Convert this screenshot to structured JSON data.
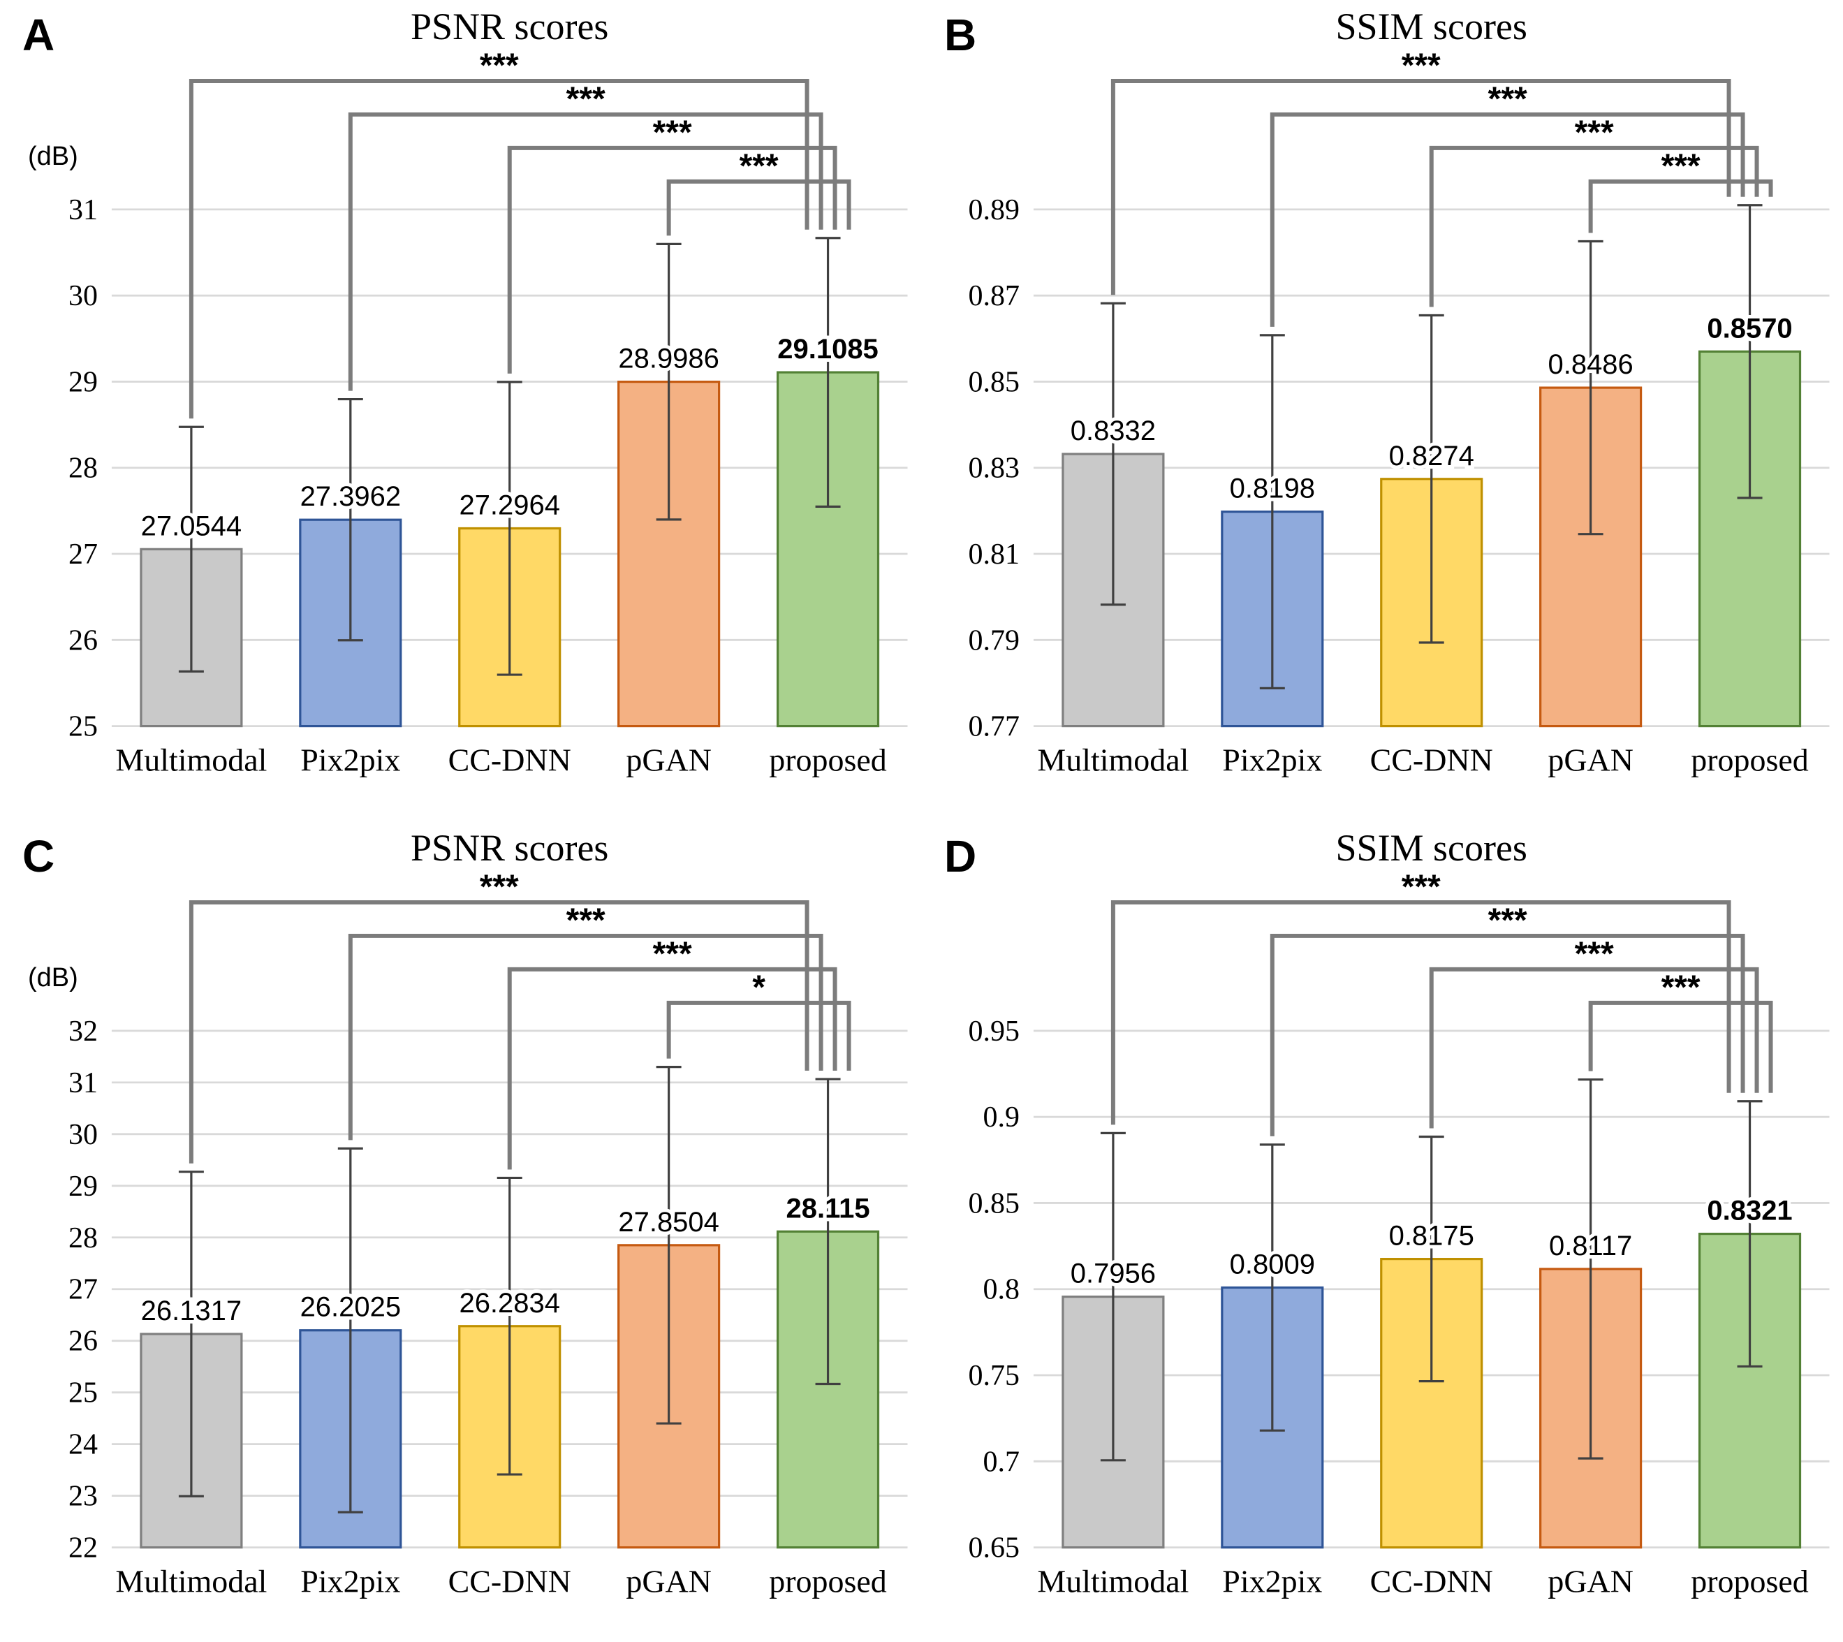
{
  "style": {
    "background": "#ffffff",
    "grid_color": "#d9d9d9",
    "error_bar_color": "#404040",
    "bracket_color": "#7c7c7c",
    "text_color": "#000000",
    "bar_colors": [
      {
        "name": "gray",
        "fill": "#c9c9c9",
        "stroke": "#7f7f7f"
      },
      {
        "name": "blue",
        "fill": "#8faadc",
        "stroke": "#2f5597"
      },
      {
        "name": "yellow",
        "fill": "#ffd966",
        "stroke": "#bf9000"
      },
      {
        "name": "orange",
        "fill": "#f4b183",
        "stroke": "#c55a11"
      },
      {
        "name": "green",
        "fill": "#a9d18e",
        "stroke": "#538135"
      }
    ]
  },
  "chart_data": [
    {
      "panel_label": "A",
      "type": "bar",
      "title": "PSNR scores",
      "unit_label": "(dB)",
      "categories": [
        "Multimodal",
        "Pix2pix",
        "CC-DNN",
        "pGAN",
        "proposed"
      ],
      "values": [
        27.0544,
        27.3962,
        27.2964,
        28.9986,
        29.1085
      ],
      "value_labels": [
        "27.0544",
        "27.3962",
        "27.2964",
        "28.9986",
        "29.1085"
      ],
      "bold_label_index": 4,
      "errors": [
        1.42,
        1.4,
        1.7,
        1.6,
        1.56
      ],
      "ylim": [
        25,
        31
      ],
      "yticks": [
        25,
        26,
        27,
        28,
        29,
        30,
        31
      ],
      "ytick_labels": [
        "25",
        "26",
        "27",
        "28",
        "29",
        "30",
        "31"
      ],
      "significance": [
        {
          "from": 0,
          "to": 4,
          "label": "***"
        },
        {
          "from": 1,
          "to": 4,
          "label": "***"
        },
        {
          "from": 2,
          "to": 4,
          "label": "***"
        },
        {
          "from": 3,
          "to": 4,
          "label": "***"
        }
      ]
    },
    {
      "panel_label": "B",
      "type": "bar",
      "title": "SSIM scores",
      "unit_label": "",
      "categories": [
        "Multimodal",
        "Pix2pix",
        "CC-DNN",
        "pGAN",
        "proposed"
      ],
      "values": [
        0.8332,
        0.8198,
        0.8274,
        0.8486,
        0.857
      ],
      "value_labels": [
        "0.8332",
        "0.8198",
        "0.8274",
        "0.8486",
        "0.8570"
      ],
      "bold_label_index": 4,
      "errors": [
        0.035,
        0.041,
        0.038,
        0.034,
        0.034
      ],
      "ylim": [
        0.77,
        0.89
      ],
      "yticks": [
        0.77,
        0.79,
        0.81,
        0.83,
        0.85,
        0.87,
        0.89
      ],
      "ytick_labels": [
        "0.77",
        "0.79",
        "0.81",
        "0.83",
        "0.85",
        "0.87",
        "0.89"
      ],
      "significance": [
        {
          "from": 0,
          "to": 4,
          "label": "***"
        },
        {
          "from": 1,
          "to": 4,
          "label": "***"
        },
        {
          "from": 2,
          "to": 4,
          "label": "***"
        },
        {
          "from": 3,
          "to": 4,
          "label": "***"
        }
      ]
    },
    {
      "panel_label": "C",
      "type": "bar",
      "title": "PSNR scores",
      "unit_label": "(dB)",
      "categories": [
        "Multimodal",
        "Pix2pix",
        "CC-DNN",
        "pGAN",
        "proposed"
      ],
      "values": [
        26.1317,
        26.2025,
        26.2834,
        27.8504,
        28.115
      ],
      "value_labels": [
        "26.1317",
        "26.2025",
        "26.2834",
        "27.8504",
        "28.115"
      ],
      "bold_label_index": 4,
      "errors": [
        3.14,
        3.52,
        2.87,
        3.45,
        2.95
      ],
      "ylim": [
        22,
        32
      ],
      "yticks": [
        22,
        23,
        24,
        25,
        26,
        27,
        28,
        29,
        30,
        31,
        32
      ],
      "ytick_labels": [
        "22",
        "23",
        "24",
        "25",
        "26",
        "27",
        "28",
        "29",
        "30",
        "31",
        "32"
      ],
      "significance": [
        {
          "from": 0,
          "to": 4,
          "label": "***"
        },
        {
          "from": 1,
          "to": 4,
          "label": "***"
        },
        {
          "from": 2,
          "to": 4,
          "label": "***"
        },
        {
          "from": 3,
          "to": 4,
          "label": "*"
        }
      ]
    },
    {
      "panel_label": "D",
      "type": "bar",
      "title": "SSIM scores",
      "unit_label": "",
      "categories": [
        "Multimodal",
        "Pix2pix",
        "CC-DNN",
        "pGAN",
        "proposed"
      ],
      "values": [
        0.7956,
        0.8009,
        0.8175,
        0.8117,
        0.8321
      ],
      "value_labels": [
        "0.7956",
        "0.8009",
        "0.8175",
        "0.8117",
        "0.8321"
      ],
      "bold_label_index": 4,
      "errors": [
        0.095,
        0.083,
        0.071,
        0.11,
        0.077
      ],
      "ylim": [
        0.65,
        0.95
      ],
      "yticks": [
        0.65,
        0.7,
        0.75,
        0.8,
        0.85,
        0.9,
        0.95
      ],
      "ytick_labels": [
        "0.65",
        "0.7",
        "0.75",
        "0.8",
        "0.85",
        "0.9",
        "0.95"
      ],
      "significance": [
        {
          "from": 0,
          "to": 4,
          "label": "***"
        },
        {
          "from": 1,
          "to": 4,
          "label": "***"
        },
        {
          "from": 2,
          "to": 4,
          "label": "***"
        },
        {
          "from": 3,
          "to": 4,
          "label": "***"
        }
      ]
    }
  ]
}
